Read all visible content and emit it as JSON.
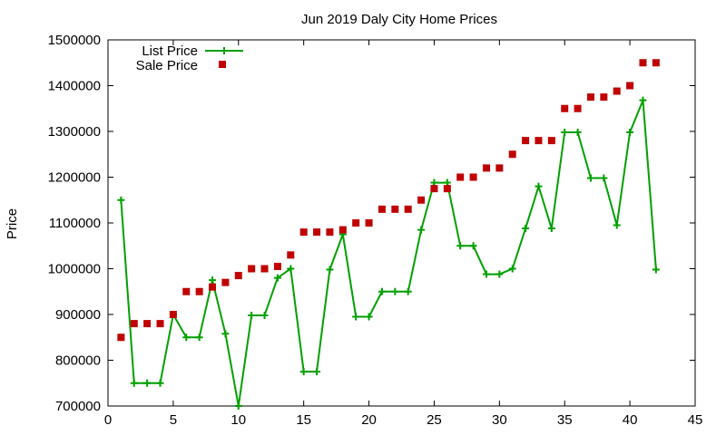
{
  "chart_data": {
    "type": "line",
    "title": "Jun 2019 Daly City Home Prices",
    "xlabel": "",
    "ylabel": "Price",
    "xlim": [
      0,
      45
    ],
    "ylim": [
      700000,
      1500000
    ],
    "x_ticks": [
      0,
      5,
      10,
      15,
      20,
      25,
      30,
      35,
      40,
      45
    ],
    "y_ticks": [
      700000,
      800000,
      900000,
      1000000,
      1100000,
      1200000,
      1300000,
      1400000,
      1500000
    ],
    "grid": false,
    "legend_position": "top-left",
    "colors": {
      "list": "#00a000",
      "sale": "#c00000"
    },
    "series": [
      {
        "name": "List Price",
        "style": "lines+points",
        "x": [
          1,
          2,
          3,
          4,
          5,
          6,
          7,
          8,
          9,
          10,
          11,
          12,
          13,
          14,
          15,
          16,
          17,
          18,
          19,
          20,
          21,
          22,
          23,
          24,
          25,
          26,
          27,
          28,
          29,
          30,
          31,
          32,
          33,
          34,
          35,
          36,
          37,
          38,
          39,
          40,
          41,
          42
        ],
        "values": [
          1150000,
          750000,
          750000,
          750000,
          900000,
          850000,
          850000,
          975000,
          858000,
          700000,
          898000,
          898000,
          980000,
          1000000,
          775000,
          775000,
          998000,
          1075000,
          895000,
          895000,
          950000,
          950000,
          950000,
          1085000,
          1188000,
          1188000,
          1050000,
          1050000,
          988000,
          988000,
          1000000,
          1088000,
          1180000,
          1088000,
          1298000,
          1298000,
          1198000,
          1198000,
          1095000,
          1298000,
          1368000,
          998000
        ]
      },
      {
        "name": "Sale Price",
        "style": "points",
        "x": [
          1,
          2,
          3,
          4,
          5,
          6,
          7,
          8,
          9,
          10,
          11,
          12,
          13,
          14,
          15,
          16,
          17,
          18,
          19,
          20,
          21,
          22,
          23,
          24,
          25,
          26,
          27,
          28,
          29,
          30,
          31,
          32,
          33,
          34,
          35,
          36,
          37,
          38,
          39,
          40,
          41,
          42
        ],
        "values": [
          850000,
          880000,
          880000,
          880000,
          900000,
          950000,
          950000,
          960000,
          970000,
          985000,
          1000000,
          1000000,
          1005000,
          1030000,
          1080000,
          1080000,
          1080000,
          1085000,
          1100000,
          1100000,
          1130000,
          1130000,
          1130000,
          1150000,
          1175000,
          1175000,
          1200000,
          1200000,
          1220000,
          1220000,
          1250000,
          1280000,
          1280000,
          1280000,
          1350000,
          1350000,
          1375000,
          1375000,
          1388000,
          1400000,
          1450000,
          1450000
        ]
      }
    ]
  }
}
